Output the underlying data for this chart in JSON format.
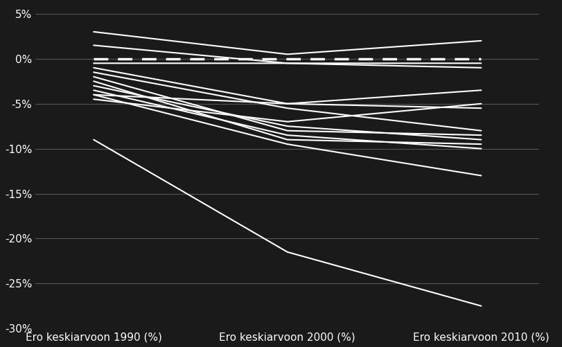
{
  "x_positions": [
    0,
    1,
    2
  ],
  "x_labels": [
    "Ero keskiarvoon 1990 (%)",
    "Ero keskiarvoon 2000 (%)",
    "Ero keskiarvoon 2010 (%)"
  ],
  "lines": [
    [
      3.0,
      0.5,
      2.0
    ],
    [
      1.5,
      -0.5,
      -0.5
    ],
    [
      -0.5,
      -0.5,
      -1.0
    ],
    [
      -1.0,
      -5.0,
      -3.5
    ],
    [
      -1.5,
      -5.5,
      -8.0
    ],
    [
      -2.0,
      -8.0,
      -8.5
    ],
    [
      -2.5,
      -9.0,
      -9.5
    ],
    [
      -3.0,
      -7.5,
      -9.0
    ],
    [
      -3.5,
      -8.5,
      -10.0
    ],
    [
      -4.0,
      -9.5,
      -13.0
    ],
    [
      -4.5,
      -7.0,
      -5.0
    ],
    [
      -4.0,
      -5.0,
      -5.5
    ],
    [
      -9.0,
      -21.5,
      -27.5
    ]
  ],
  "dashed_line": [
    0.0,
    0.0,
    0.0
  ],
  "bg_color": "#1a1a1a",
  "line_color": "white",
  "dashed_color": "white",
  "grid_color": "#555555",
  "text_color": "white",
  "ylim": [
    -30,
    6
  ],
  "yticks": [
    5,
    0,
    -5,
    -10,
    -15,
    -20,
    -25,
    -30
  ],
  "ytick_labels": [
    "5%",
    "0%",
    "-5%",
    "-10%",
    "-15%",
    "-20%",
    "-25%",
    "-30%"
  ]
}
